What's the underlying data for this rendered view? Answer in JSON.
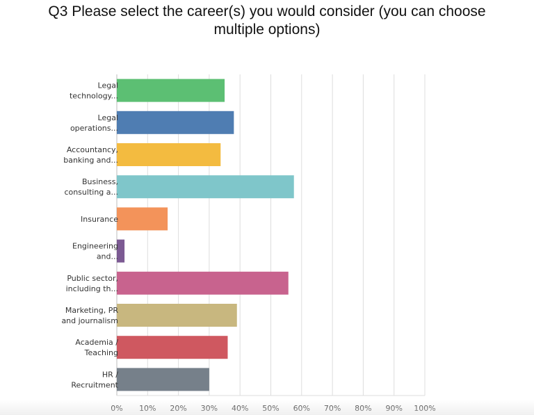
{
  "title_lines": [
    "Q3 Please select the career(s) you would consider (you can choose",
    "multiple options)"
  ],
  "colors": {
    "grid": "#dddddd",
    "axis": "#bbbbbb",
    "text": "#333333"
  },
  "chart_data": {
    "type": "bar",
    "orientation": "horizontal",
    "title": "Q3 Please select the career(s) you would consider (you can choose multiple options)",
    "xlabel": "",
    "ylabel": "",
    "xlim": [
      0,
      100
    ],
    "grid": true,
    "legend": "none",
    "tick_labels": [
      "0%",
      "10%",
      "20%",
      "30%",
      "40%",
      "50%",
      "60%",
      "70%",
      "80%",
      "90%",
      "100%"
    ],
    "categories": [
      [
        "Legal",
        "technology..."
      ],
      [
        "Legal",
        "operations..."
      ],
      [
        "Accountancy,",
        "banking and..."
      ],
      [
        "Business,",
        "consulting a..."
      ],
      [
        "Insurance"
      ],
      [
        "Engineering",
        "and..."
      ],
      [
        "Public sector,",
        "including th..."
      ],
      [
        "Marketing, PR",
        "and journalism"
      ],
      [
        "Academia /",
        "Teaching"
      ],
      [
        "HR /",
        "Recruitment"
      ]
    ],
    "values": [
      35,
      38,
      33.7,
      57.5,
      16.5,
      2.5,
      55.7,
      39,
      36,
      30
    ],
    "bar_colors": [
      "#5cbf73",
      "#4f7db2",
      "#f3bb40",
      "#7fc6ca",
      "#f3935a",
      "#7c5a93",
      "#c8638e",
      "#c8b77f",
      "#cf5860",
      "#76808a"
    ]
  }
}
